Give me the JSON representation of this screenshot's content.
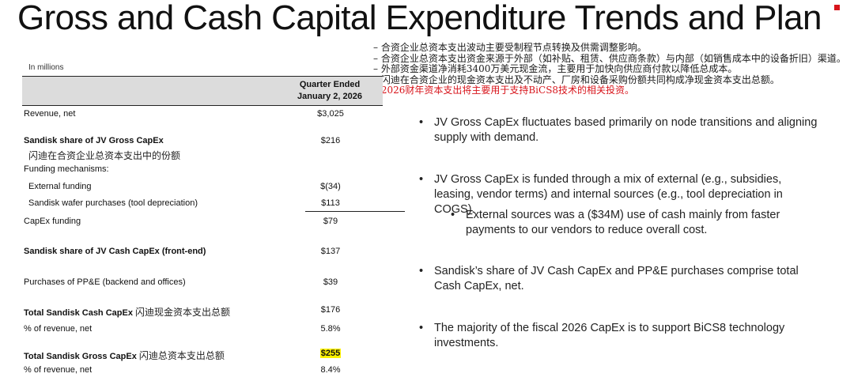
{
  "title": "Gross and Cash Capital Expenditure Trends and Plan",
  "cn_notes": [
    "– 合资企业总资本支出波动主要受制程节点转换及供需调整影响。",
    "– 合资企业总资本支出资金来源于外部（如补贴、租赁、供应商条款）与内部（如销售成本中的设备折旧）渠道。",
    "– 外部资金渠道净消耗3400万美元现金流，主要用于加快向供应商付款以降低总成本。",
    "– 闪迪在合资企业的现金资本支出及不动产、厂房和设备采购份额共同构成净现金资本支出总额。",
    "– 2026财年资本支出将主要用于支持BiCS8技术的相关投资。"
  ],
  "table": {
    "units": "In millions",
    "column_header": [
      "Quarter Ended",
      "January 2, 2026"
    ],
    "rows": {
      "revenue": {
        "label": "Revenue, net",
        "value": "$3,025"
      },
      "jv_gross": {
        "label": "Sandisk share of JV Gross CapEx",
        "value": "$216",
        "cn": "闪迪在合资企业总资本支出中的份额"
      },
      "funding_mechanisms": {
        "label": "Funding mechanisms:"
      },
      "external": {
        "label": "External funding",
        "value": "$(34)"
      },
      "wafer": {
        "label": "Sandisk wafer purchases (tool depreciation)",
        "value": "$113"
      },
      "capex_funding": {
        "label": "CapEx funding",
        "value": "$79"
      },
      "jv_cash": {
        "label": "Sandisk share of JV Cash CapEx (front-end)",
        "value": "$137"
      },
      "ppe": {
        "label": "Purchases of PP&E (backend and offices)",
        "value": "$39"
      },
      "total_cash": {
        "label": "Total Sandisk Cash CapEx",
        "cn": "闪迪现金资本支出总额",
        "value": "$176"
      },
      "cash_pct": {
        "label": "% of revenue, net",
        "value": "5.8%"
      },
      "total_gross": {
        "label": "Total Sandisk Gross CapEx",
        "cn": "闪迪总资本支出总额",
        "value": "$255"
      },
      "gross_pct": {
        "label": "% of revenue, net",
        "value": "8.4%"
      }
    }
  },
  "bullets": [
    {
      "text": "JV Gross CapEx fluctuates based primarily on node transitions and aligning supply with demand."
    },
    {
      "text": "JV Gross CapEx is funded through a mix of external (e.g., subsidies, leasing, vendor terms) and internal sources (e.g., tool depreciation in COGS)."
    },
    {
      "text": "External sources was a ($34M) use of cash mainly from faster payments to our vendors to reduce overall cost."
    },
    {
      "text": "Sandisk’s share of JV Cash CapEx and PP&E purchases comprise total Cash CapEx, net."
    },
    {
      "text": "The majority of the fiscal 2026 CapEx is to support BiCS8 technology investments."
    }
  ],
  "colors": {
    "highlight": "#fff200",
    "accent_red": "#d8141b",
    "header_fill": "#dcdcdc"
  }
}
